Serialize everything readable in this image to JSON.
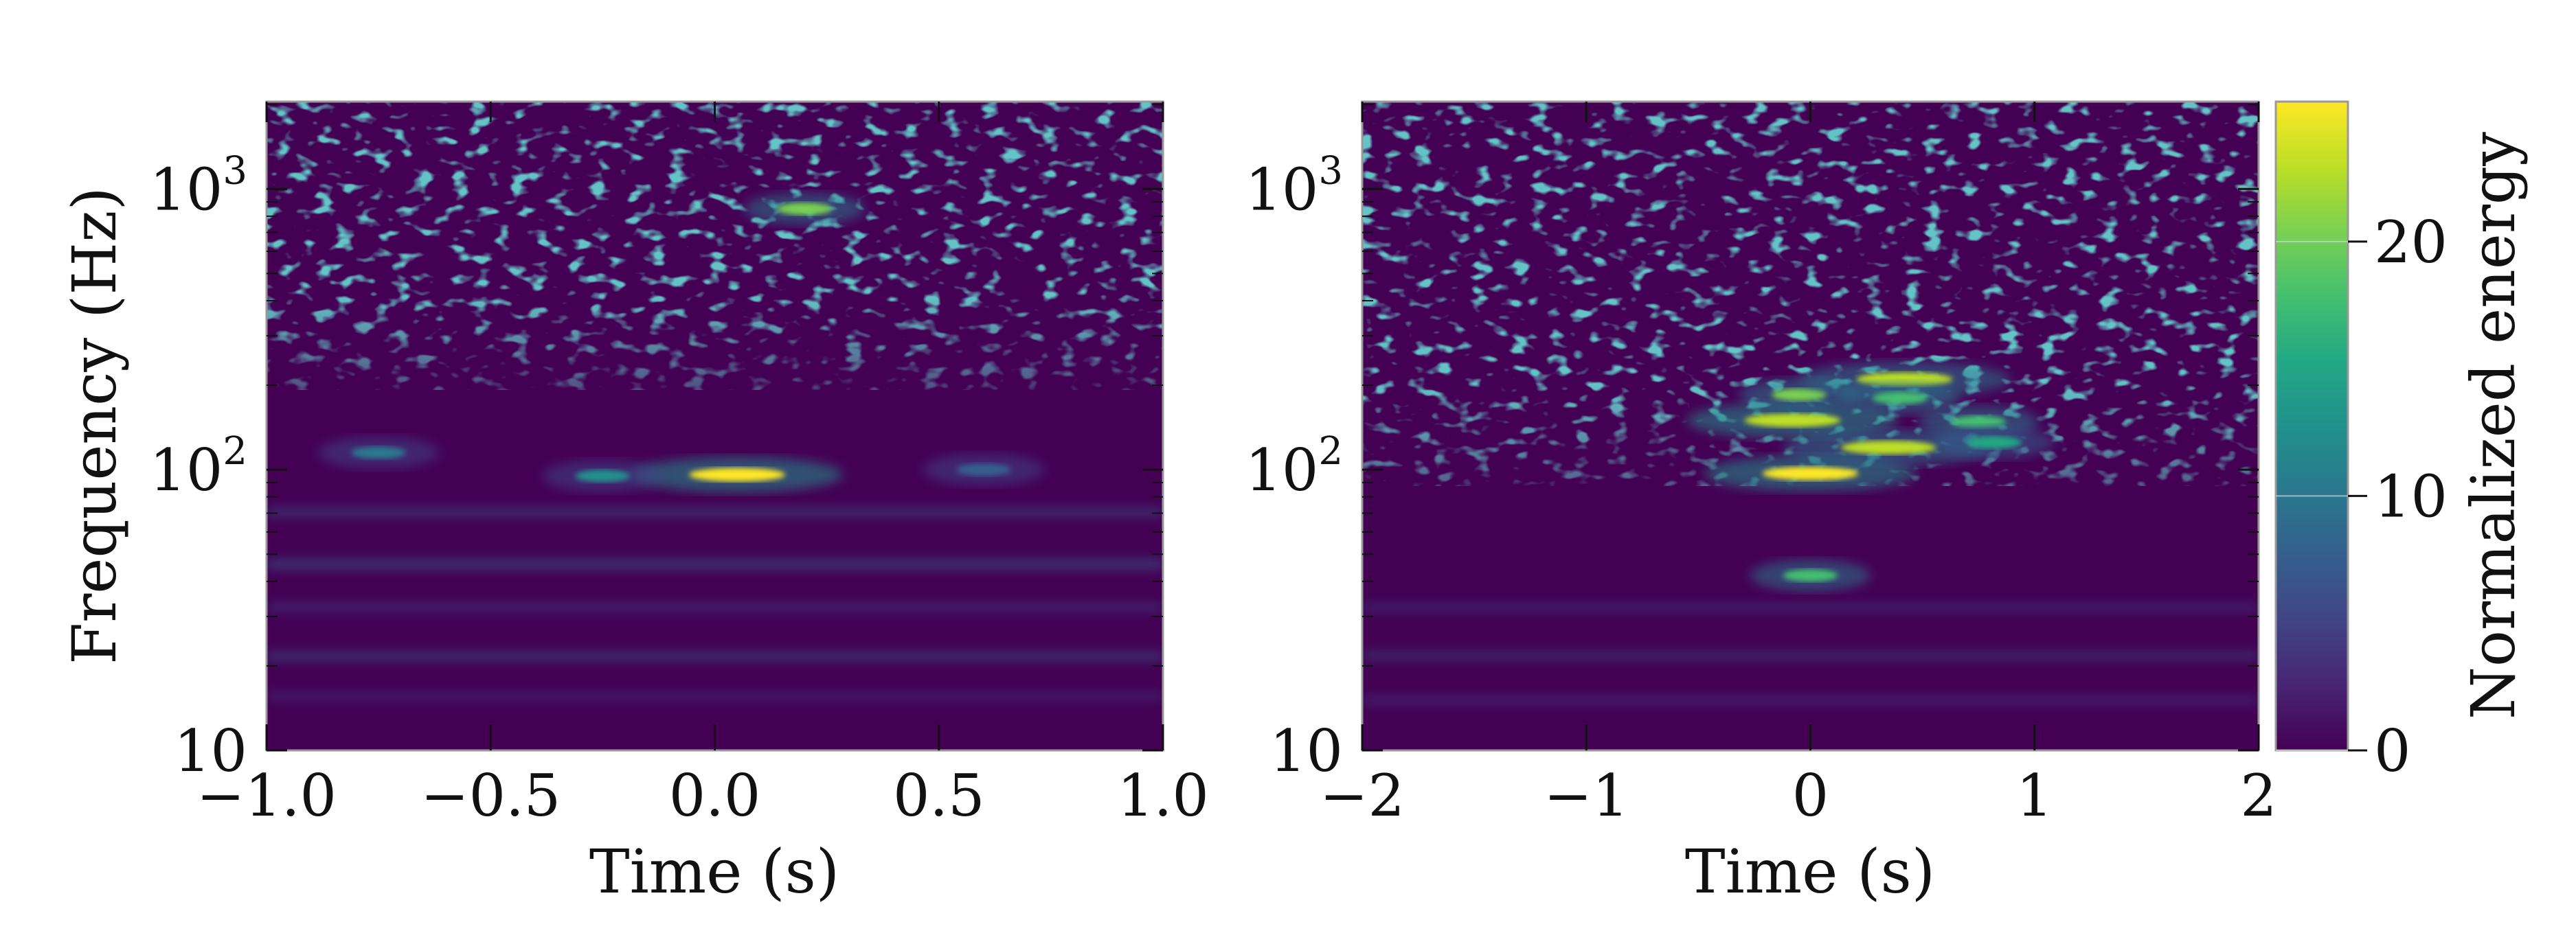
{
  "chart_data": [
    {
      "type": "heatmap",
      "title": "",
      "xlabel": "Time (s)",
      "ylabel": "Frequency (Hz)",
      "xlim": [
        -1.0,
        1.0
      ],
      "ylim": [
        10,
        2048
      ],
      "yscale": "log",
      "xticks": [
        -1.0,
        -0.5,
        0.0,
        0.5,
        1.0
      ],
      "xtick_labels": [
        "−1.0",
        "−0.5",
        "0.0",
        "0.5",
        "1.0"
      ],
      "yticks": [
        10,
        100,
        1000
      ],
      "ytick_labels": [
        "10",
        "10",
        "10"
      ],
      "ytick_exponents": [
        "",
        "2",
        "3"
      ],
      "features": [
        {
          "t": 0.05,
          "f": 96,
          "energy": 25
        },
        {
          "t": -0.25,
          "f": 95,
          "energy": 12
        },
        {
          "t": -0.75,
          "f": 115,
          "energy": 10
        },
        {
          "t": 0.2,
          "f": 850,
          "energy": 20
        },
        {
          "t": 0.6,
          "f": 100,
          "energy": 8
        }
      ]
    },
    {
      "type": "heatmap",
      "title": "",
      "xlabel": "Time (s)",
      "ylabel": "",
      "xlim": [
        -2,
        2
      ],
      "ylim": [
        10,
        2048
      ],
      "yscale": "log",
      "xticks": [
        -2,
        -1,
        0,
        1,
        2
      ],
      "xtick_labels": [
        "−2",
        "−1",
        "0",
        "1",
        "2"
      ],
      "yticks": [
        10,
        100,
        1000
      ],
      "ytick_labels": [
        "10",
        "10",
        "10"
      ],
      "ytick_exponents": [
        "",
        "2",
        "3"
      ],
      "features": [
        {
          "t": 0.0,
          "f": 97,
          "energy": 25
        },
        {
          "t": -0.08,
          "f": 150,
          "energy": 24
        },
        {
          "t": -0.05,
          "f": 185,
          "energy": 20
        },
        {
          "t": 0.35,
          "f": 120,
          "energy": 22
        },
        {
          "t": 0.42,
          "f": 210,
          "energy": 22
        },
        {
          "t": 0.4,
          "f": 180,
          "energy": 18
        },
        {
          "t": 0.75,
          "f": 148,
          "energy": 18
        },
        {
          "t": 0.82,
          "f": 125,
          "energy": 16
        },
        {
          "t": 0.0,
          "f": 42,
          "energy": 18
        }
      ]
    }
  ],
  "colorbar": {
    "label": "Normalized energy",
    "min": 0,
    "max": 25.5,
    "ticks": [
      0,
      10,
      20
    ],
    "tick_labels": [
      "0",
      "10",
      "20"
    ],
    "colormap": [
      "#440154",
      "#482475",
      "#414487",
      "#355f8d",
      "#2a788e",
      "#21918c",
      "#22a884",
      "#44bf70",
      "#7ad151",
      "#bddf26",
      "#fde725"
    ]
  }
}
